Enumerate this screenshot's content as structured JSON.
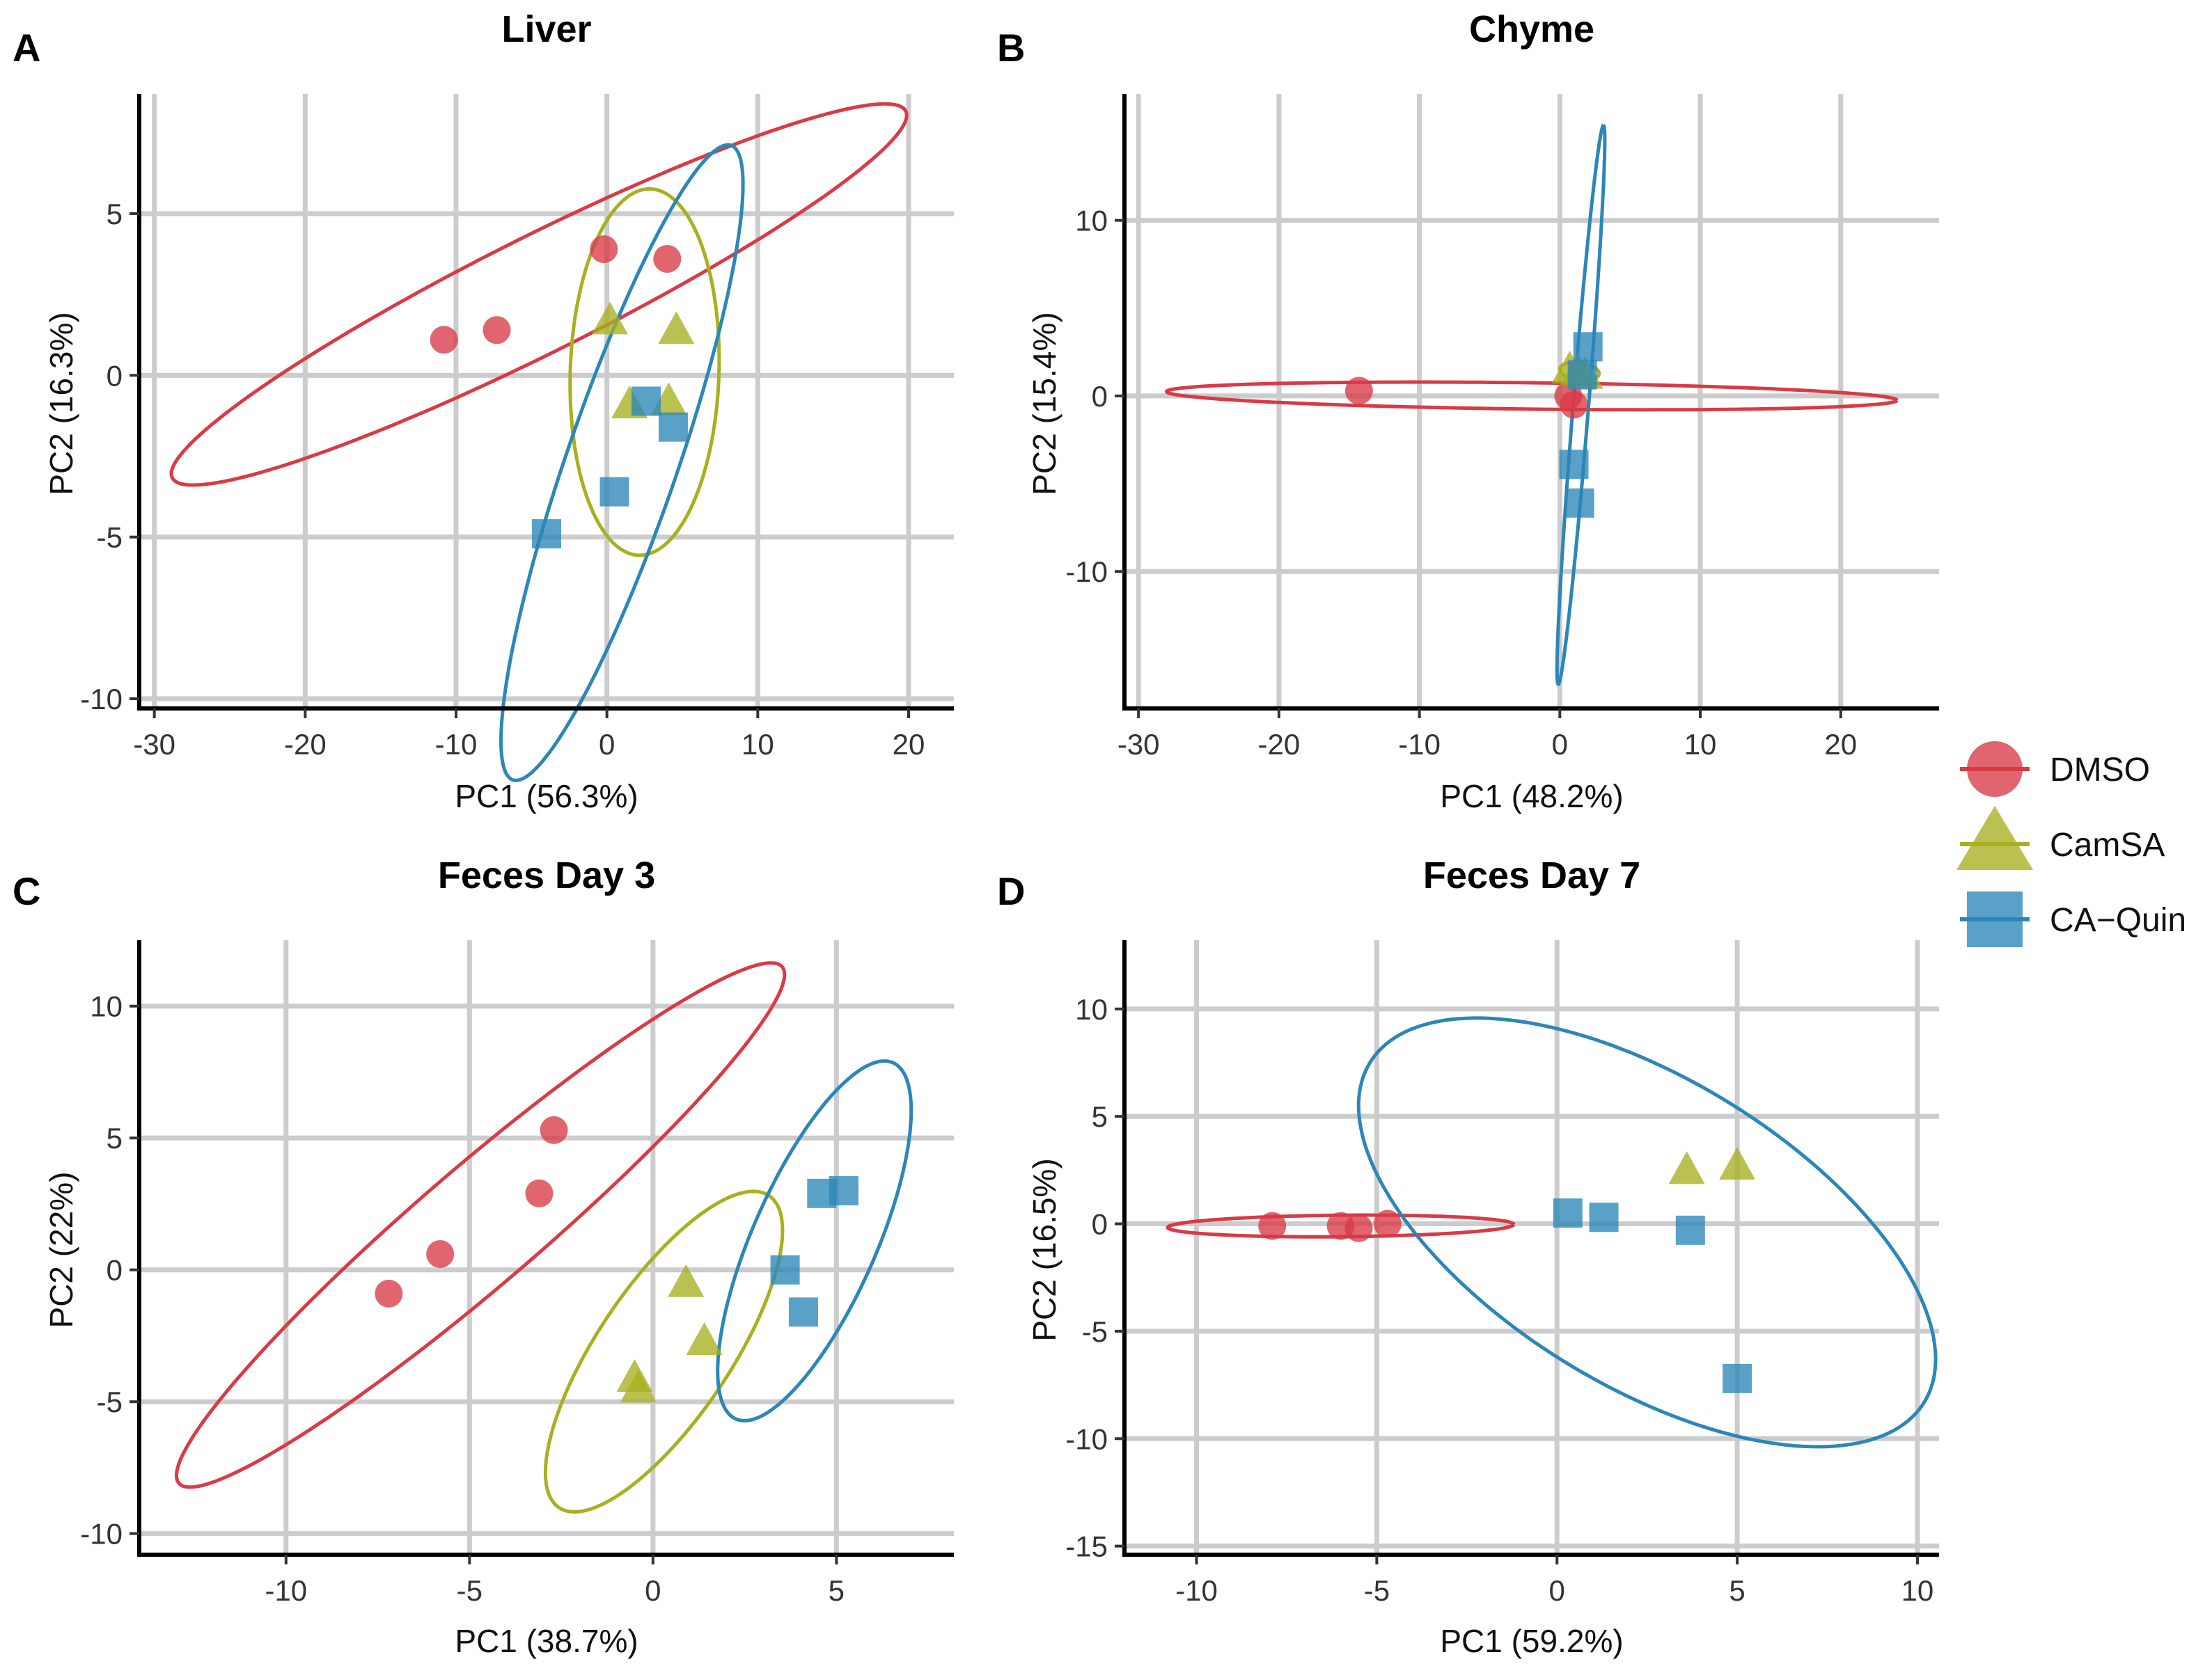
{
  "groups": [
    {
      "name": "DMSO",
      "color": "#D93A46",
      "shape": "circle"
    },
    {
      "name": "CamSA",
      "color": "#A8B020",
      "shape": "triangle"
    },
    {
      "name": "CA−Quin",
      "color": "#2C86B8",
      "shape": "square"
    }
  ],
  "chart_data": [
    {
      "type": "scatter",
      "panel": "A",
      "title": "Liver",
      "xlabel": "PC1 (56.3%)",
      "ylabel": "PC2 (16.3%)",
      "xlim": [
        -31,
        23
      ],
      "ylim": [
        -10.3,
        8.7
      ],
      "xticks": [
        -30,
        -20,
        -10,
        0,
        10,
        20
      ],
      "yticks": [
        -10,
        -5,
        0,
        5
      ],
      "xtick_labels": [
        "-30",
        "-20",
        "-10",
        "0",
        "10",
        "20"
      ],
      "ytick_labels": [
        "-10",
        "-5",
        "0",
        "5"
      ],
      "series": [
        {
          "name": "DMSO",
          "points": [
            [
              -10.8,
              1.1
            ],
            [
              -7.3,
              1.4
            ],
            [
              -0.2,
              3.9
            ],
            [
              4.0,
              3.6
            ]
          ],
          "ellipse": {
            "cx": -4.5,
            "cy": 2.5,
            "a": 25.0,
            "b": 1.95,
            "angle": 0.225
          }
        },
        {
          "name": "CamSA",
          "points": [
            [
              0.2,
              1.7
            ],
            [
              4.6,
              1.4
            ],
            [
              1.5,
              -0.9
            ],
            [
              4.1,
              -0.8
            ]
          ],
          "ellipse": {
            "cx": 2.5,
            "cy": 0.1,
            "a": 5.7,
            "b": 4.9,
            "angle": 1.35
          }
        },
        {
          "name": "CA−Quin",
          "points": [
            [
              2.6,
              -0.8
            ],
            [
              4.4,
              -1.6
            ],
            [
              0.5,
              -3.6
            ],
            [
              -4.0,
              -4.9
            ]
          ],
          "ellipse": {
            "cx": 1.0,
            "cy": -2.7,
            "a": 12.3,
            "b": 3.1,
            "angle": 0.9
          }
        }
      ]
    },
    {
      "type": "scatter",
      "panel": "B",
      "title": "Chyme",
      "xlabel": "PC1 (48.2%)",
      "ylabel": "PC2 (15.4%)",
      "xlim": [
        -31,
        27
      ],
      "ylim": [
        -17.8,
        17.2
      ],
      "xticks": [
        -30,
        -20,
        -10,
        0,
        10,
        20
      ],
      "yticks": [
        -10,
        0,
        10
      ],
      "xtick_labels": [
        "-30",
        "-20",
        "-10",
        "0",
        "10",
        "20"
      ],
      "ytick_labels": [
        "-10",
        "0",
        "10"
      ],
      "series": [
        {
          "name": "DMSO",
          "points": [
            [
              -14.3,
              0.3
            ],
            [
              0.6,
              0.0
            ],
            [
              1.0,
              -0.5
            ]
          ],
          "ellipse": {
            "cx": -2.0,
            "cy": 0.0,
            "a": 26.0,
            "b": 0.75,
            "angle": -0.0095
          }
        },
        {
          "name": "CamSA",
          "points": [
            [
              0.7,
              1.5
            ],
            [
              1.3,
              1.4
            ],
            [
              1.8,
              1.2
            ]
          ],
          "ellipse": {
            "cx": 1.4,
            "cy": 1.4,
            "a": 1.4,
            "b": 0.5,
            "angle": -0.1
          }
        },
        {
          "name": "CA−Quin",
          "points": [
            [
              2.0,
              2.8
            ],
            [
              1.6,
              1.2
            ],
            [
              1.0,
              -3.9
            ],
            [
              1.4,
              -6.1
            ]
          ],
          "ellipse": {
            "cx": 1.5,
            "cy": -0.5,
            "a": 16.0,
            "b": 0.55,
            "angle": 1.47
          }
        }
      ]
    },
    {
      "type": "scatter",
      "panel": "C",
      "title": "Feces Day 3",
      "xlabel": "PC1 (38.7%)",
      "ylabel": "PC2 (22%)",
      "xlim": [
        -14,
        8.2
      ],
      "ylim": [
        -10.8,
        12.5
      ],
      "xticks": [
        -10,
        -5,
        0,
        5
      ],
      "yticks": [
        -10,
        -5,
        0,
        5,
        10
      ],
      "xtick_labels": [
        "-10",
        "-5",
        "0",
        "5"
      ],
      "ytick_labels": [
        "-10",
        "-5",
        "0",
        "5",
        "10"
      ],
      "series": [
        {
          "name": "DMSO",
          "points": [
            [
              -7.2,
              -0.9
            ],
            [
              -5.8,
              0.6
            ],
            [
              -3.1,
              2.9
            ],
            [
              -2.7,
              5.3
            ]
          ],
          "ellipse": {
            "cx": -4.7,
            "cy": 1.7,
            "a": 12.8,
            "b": 1.9,
            "angle": 0.88
          }
        },
        {
          "name": "CamSA",
          "points": [
            [
              0.9,
              -0.5
            ],
            [
              1.4,
              -2.7
            ],
            [
              -0.5,
              -4.1
            ],
            [
              -0.4,
              -4.5
            ]
          ],
          "ellipse": {
            "cx": 0.3,
            "cy": -3.1,
            "a": 6.6,
            "b": 1.95,
            "angle": 1.15
          }
        },
        {
          "name": "CA−Quin",
          "points": [
            [
              4.6,
              2.9
            ],
            [
              5.2,
              3.0
            ],
            [
              3.6,
              0.0
            ],
            [
              4.1,
              -1.6
            ]
          ],
          "ellipse": {
            "cx": 4.4,
            "cy": 1.1,
            "a": 7.1,
            "b": 1.75,
            "angle": 1.28
          }
        }
      ]
    },
    {
      "type": "scatter",
      "panel": "D",
      "title": "Feces Day 7",
      "xlabel": "PC1 (59.2%)",
      "ylabel": "PC2 (16.5%)",
      "xlim": [
        -12,
        10.6
      ],
      "ylim": [
        -15.4,
        13.2
      ],
      "xticks": [
        -10,
        -5,
        0,
        5,
        10
      ],
      "yticks": [
        -15,
        -10,
        -5,
        0,
        5,
        10
      ],
      "xtick_labels": [
        "-10",
        "-5",
        "0",
        "5",
        "10"
      ],
      "ytick_labels": [
        "-15",
        "-10",
        "-5",
        "0",
        "5",
        "10"
      ],
      "series": [
        {
          "name": "DMSO",
          "points": [
            [
              -7.9,
              -0.1
            ],
            [
              -6.0,
              -0.1
            ],
            [
              -5.5,
              -0.2
            ],
            [
              -4.7,
              0.0
            ]
          ],
          "ellipse": {
            "cx": -6.0,
            "cy": -0.1,
            "a": 4.8,
            "b": 0.5,
            "angle": 0.015
          }
        },
        {
          "name": "CamSA",
          "points": [
            [
              3.6,
              2.5
            ],
            [
              5.0,
              2.7
            ]
          ]
        },
        {
          "name": "CA−Quin",
          "points": [
            [
              0.3,
              0.5
            ],
            [
              1.3,
              0.3
            ],
            [
              3.7,
              -0.3
            ],
            [
              5.0,
              -7.2
            ]
          ],
          "ellipse": {
            "cx": 2.5,
            "cy": -0.4,
            "a": 11.5,
            "b": 5.6,
            "angle": -0.965
          }
        }
      ]
    }
  ]
}
